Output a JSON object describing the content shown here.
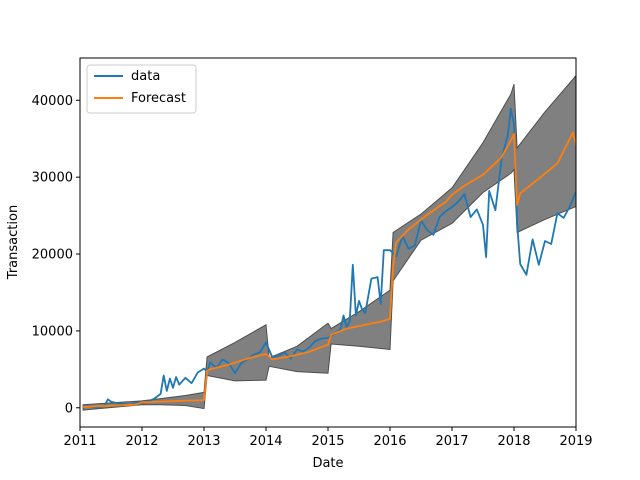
{
  "chart_data": {
    "type": "line",
    "xlabel": "Date",
    "ylabel": "Transaction",
    "xlim": [
      2011,
      2019
    ],
    "ylim": [
      -2500,
      45500
    ],
    "x_ticks": [
      2011,
      2012,
      2013,
      2014,
      2015,
      2016,
      2017,
      2018,
      2019
    ],
    "y_ticks": [
      0,
      10000,
      20000,
      30000,
      40000
    ],
    "legend_position": "top-left",
    "colors": {
      "data": "#1f77b4",
      "forecast": "#ff7f0e",
      "band": "#808080",
      "band_edge": "#4d4d4d"
    },
    "series": [
      {
        "name": "data",
        "x": [
          2011.1,
          2011.2,
          2011.3,
          2011.4,
          2011.45,
          2011.5,
          2011.6,
          2011.7,
          2011.8,
          2011.9,
          2012.0,
          2012.1,
          2012.2,
          2012.3,
          2012.35,
          2012.4,
          2012.45,
          2012.5,
          2012.55,
          2012.6,
          2012.7,
          2012.8,
          2012.9,
          2013.0,
          2013.05,
          2013.1,
          2013.2,
          2013.3,
          2013.4,
          2013.5,
          2013.6,
          2013.7,
          2013.8,
          2013.9,
          2014.0,
          2014.1,
          2014.2,
          2014.3,
          2014.4,
          2014.5,
          2014.6,
          2014.7,
          2014.8,
          2014.9,
          2015.0,
          2015.1,
          2015.2,
          2015.25,
          2015.3,
          2015.35,
          2015.4,
          2015.45,
          2015.5,
          2015.55,
          2015.6,
          2015.7,
          2015.8,
          2015.85,
          2015.9,
          2016.0,
          2016.1,
          2016.2,
          2016.3,
          2016.4,
          2016.5,
          2016.6,
          2016.7,
          2016.8,
          2016.9,
          2017.0,
          2017.1,
          2017.2,
          2017.3,
          2017.4,
          2017.5,
          2017.55,
          2017.6,
          2017.7,
          2017.8,
          2017.9,
          2017.95,
          2018.0,
          2018.05,
          2018.1,
          2018.2,
          2018.3,
          2018.4,
          2018.5,
          2018.6,
          2018.7,
          2018.8,
          2018.9,
          2019.0
        ],
        "y": [
          200,
          100,
          0,
          300,
          1100,
          800,
          600,
          500,
          400,
          700,
          600,
          800,
          1200,
          1800,
          4200,
          2200,
          3800,
          2600,
          4000,
          3000,
          3900,
          3200,
          4600,
          5100,
          4700,
          5900,
          5200,
          6300,
          5800,
          4500,
          5800,
          6300,
          6900,
          7200,
          8500,
          6600,
          6700,
          7200,
          6400,
          7600,
          7300,
          7900,
          8700,
          9000,
          9100,
          9600,
          10200,
          12000,
          10500,
          11200,
          18600,
          12000,
          13900,
          12800,
          12300,
          16800,
          17000,
          13500,
          20500,
          20500,
          19700,
          22300,
          20700,
          21100,
          24400,
          23100,
          22500,
          24800,
          25600,
          26100,
          26800,
          27800,
          24800,
          25800,
          23800,
          19600,
          28200,
          25700,
          32400,
          35500,
          38900,
          36900,
          24000,
          18700,
          17300,
          21900,
          18600,
          21700,
          21300,
          25300,
          24700,
          26200,
          28100
        ]
      },
      {
        "name": "Forecast",
        "x": [
          2011.05,
          2011.3,
          2011.6,
          2011.9,
          2012.0,
          2012.3,
          2012.6,
          2013.0,
          2013.05,
          2013.1,
          2013.4,
          2013.7,
          2014.0,
          2014.1,
          2014.4,
          2014.7,
          2015.0,
          2015.05,
          2015.3,
          2015.6,
          2015.9,
          2016.0,
          2016.05,
          2016.1,
          2016.3,
          2016.6,
          2016.9,
          2017.0,
          2017.2,
          2017.5,
          2017.8,
          2017.95,
          2018.0,
          2018.05,
          2018.1,
          2018.4,
          2018.7,
          2018.95,
          2019.0
        ],
        "y": [
          100,
          200,
          300,
          400,
          700,
          800,
          900,
          1000,
          4800,
          5000,
          5600,
          6400,
          7000,
          6300,
          6700,
          7300,
          8200,
          9500,
          10300,
          10800,
          11300,
          11600,
          18400,
          21500,
          23200,
          25100,
          26800,
          27700,
          28900,
          30300,
          32600,
          34800,
          35600,
          26400,
          27900,
          29800,
          31800,
          35800,
          34200
        ]
      }
    ],
    "confidence_band": {
      "x": [
        2011.05,
        2012.0,
        2012.3,
        2012.7,
        2013.0,
        2013.05,
        2013.5,
        2014.0,
        2014.05,
        2014.5,
        2015.0,
        2015.05,
        2015.5,
        2016.0,
        2016.05,
        2016.5,
        2017.0,
        2017.5,
        2017.95,
        2018.0,
        2018.05,
        2018.5,
        2019.0
      ],
      "upper": [
        400,
        900,
        1200,
        1600,
        2000,
        6600,
        8500,
        10800,
        6500,
        8000,
        11000,
        10300,
        12500,
        15300,
        22800,
        25200,
        28600,
        34500,
        40800,
        42100,
        33800,
        38500,
        43200
      ],
      "lower": [
        -300,
        400,
        400,
        300,
        -100,
        4200,
        3500,
        3600,
        5400,
        4700,
        4500,
        8300,
        8000,
        7600,
        16500,
        21800,
        24000,
        28000,
        30500,
        31000,
        22800,
        24500,
        26200
      ]
    }
  }
}
